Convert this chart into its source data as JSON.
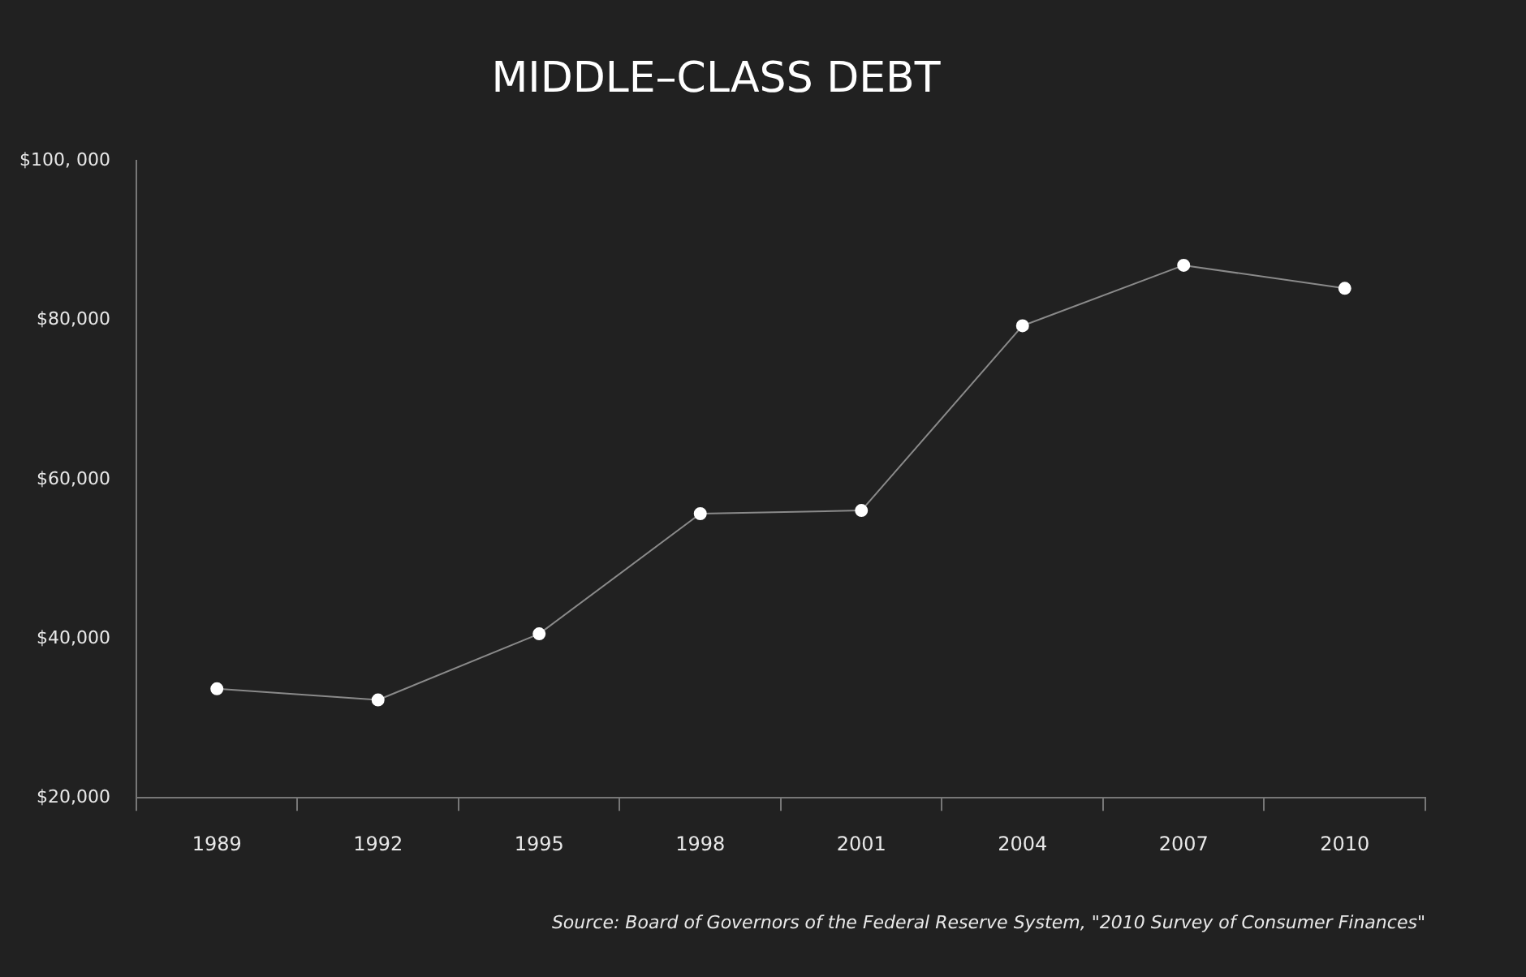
{
  "chart_data": {
    "type": "line",
    "title": "MIDDLE–CLASS DEBT",
    "categories": [
      "1989",
      "1992",
      "1995",
      "1998",
      "2001",
      "2004",
      "2007",
      "2010"
    ],
    "series": [
      {
        "color": "#ffffff",
        "values": [
          33700,
          32300,
          40600,
          55700,
          56100,
          79300,
          86900,
          84000
        ]
      }
    ],
    "ylim": [
      20000,
      100000
    ],
    "yticks": [
      {
        "value": 20000,
        "label": "$20,000"
      },
      {
        "value": 40000,
        "label": "$40,000"
      },
      {
        "value": 60000,
        "label": "$60,000"
      },
      {
        "value": 80000,
        "label": "$80,000"
      },
      {
        "value": 100000,
        "label": "$100, 000"
      }
    ],
    "marker": "circle",
    "line_style": "solid",
    "legend": false,
    "annotations": [
      "Source: Board of Governors of the Federal Reserve System, \"2010 Survey of Consumer Finances\""
    ]
  }
}
